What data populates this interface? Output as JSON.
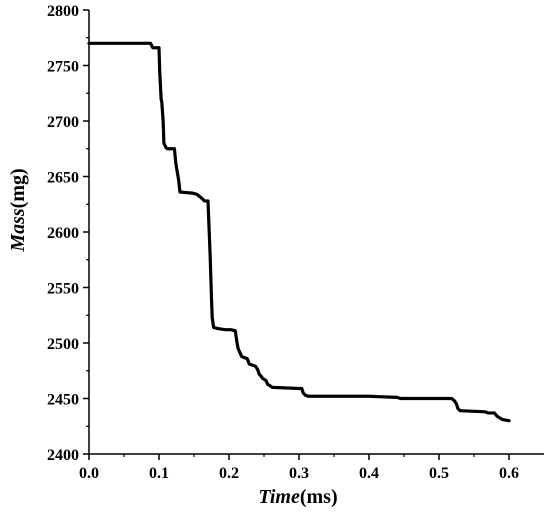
{
  "chart_data": {
    "type": "line",
    "title": "",
    "xlabel": {
      "italic": "Time",
      "unit": "(ms)"
    },
    "ylabel": {
      "italic": "Mass",
      "unit": "(mg)"
    },
    "xlim": [
      0.0,
      0.65
    ],
    "ylim": [
      2400,
      2800
    ],
    "xticks": [
      0.0,
      0.1,
      0.2,
      0.3,
      0.4,
      0.5,
      0.6
    ],
    "xtick_labels": [
      "0.0",
      "0.1",
      "0.2",
      "0.3",
      "0.4",
      "0.5",
      "0.6"
    ],
    "yticks": [
      2400,
      2450,
      2500,
      2550,
      2600,
      2650,
      2700,
      2750,
      2800
    ],
    "ytick_labels": [
      "2400",
      "2450",
      "2500",
      "2550",
      "2600",
      "2650",
      "2700",
      "2750",
      "2800"
    ],
    "grid": false,
    "legend": "none",
    "series": [
      {
        "color": "#000000",
        "x": [
          0.0,
          0.088,
          0.091,
          0.1,
          0.101,
          0.103,
          0.104,
          0.106,
          0.107,
          0.11,
          0.112,
          0.122,
          0.124,
          0.128,
          0.13,
          0.148,
          0.154,
          0.158,
          0.16,
          0.165,
          0.17,
          0.173,
          0.175,
          0.176,
          0.178,
          0.184,
          0.195,
          0.203,
          0.209,
          0.211,
          0.213,
          0.218,
          0.221,
          0.226,
          0.229,
          0.234,
          0.238,
          0.241,
          0.243,
          0.246,
          0.248,
          0.251,
          0.253,
          0.255,
          0.262,
          0.3,
          0.304,
          0.306,
          0.309,
          0.313,
          0.4,
          0.44,
          0.445,
          0.48,
          0.518,
          0.522,
          0.525,
          0.527,
          0.53,
          0.566,
          0.57,
          0.579,
          0.583,
          0.588,
          0.591,
          0.6
        ],
        "y": [
          2770,
          2770,
          2766,
          2766,
          2745,
          2720,
          2717,
          2699,
          2680,
          2676,
          2675,
          2675,
          2662,
          2647,
          2636,
          2635,
          2634,
          2632,
          2631,
          2628,
          2628,
          2580,
          2540,
          2523,
          2514,
          2513,
          2512,
          2512,
          2511,
          2502,
          2495,
          2488,
          2487,
          2486,
          2481,
          2480,
          2479,
          2476,
          2472,
          2470,
          2468,
          2467,
          2466,
          2463,
          2460,
          2459,
          2459,
          2455,
          2453,
          2452,
          2452,
          2451,
          2450,
          2450,
          2450,
          2448,
          2445,
          2441,
          2439,
          2438,
          2437,
          2437,
          2434,
          2432,
          2431,
          2430
        ]
      }
    ]
  }
}
